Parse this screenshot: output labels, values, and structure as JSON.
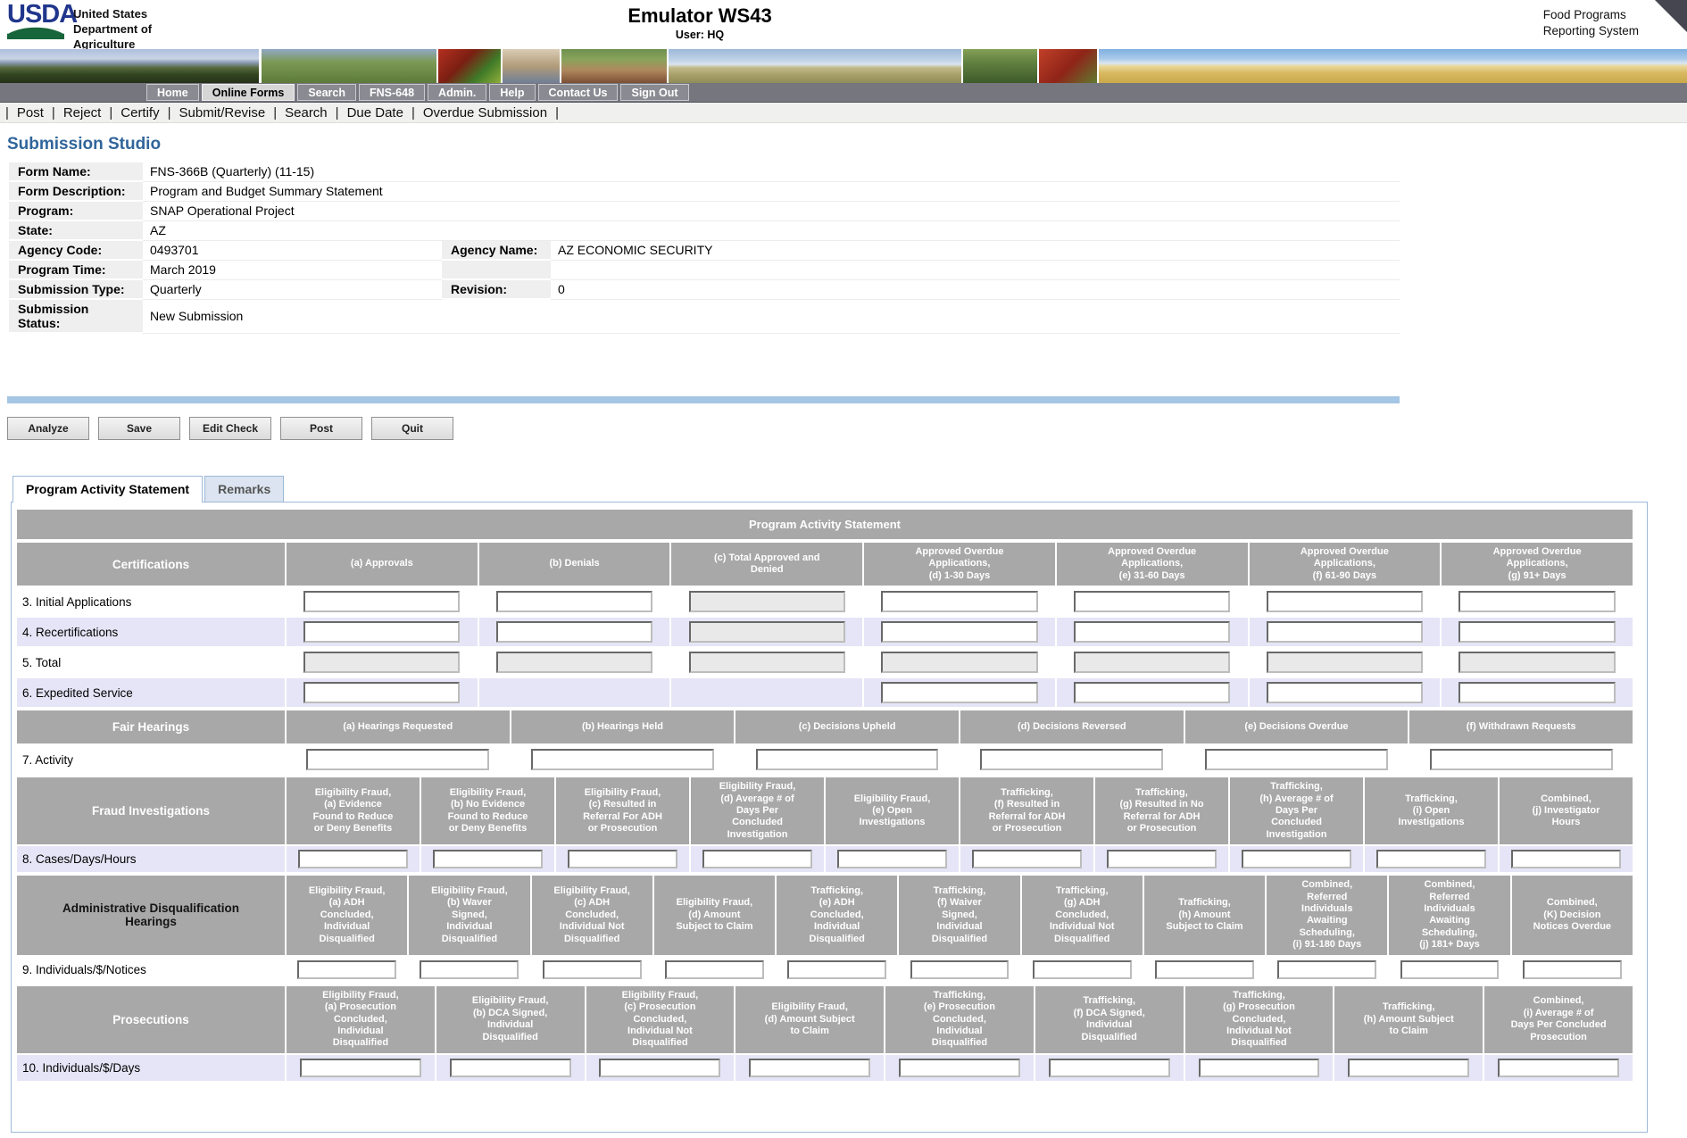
{
  "header": {
    "logo_text": "USDA",
    "dept_lines": [
      "United States",
      "Department of",
      "Agriculture"
    ],
    "app_title": "Emulator WS43",
    "user_line": "User: HQ",
    "system_lines": [
      "Food Programs",
      "Reporting System"
    ]
  },
  "nav": {
    "items": [
      {
        "label": "Home",
        "active": false
      },
      {
        "label": "Online Forms",
        "active": true
      },
      {
        "label": "Search",
        "active": false
      },
      {
        "label": "FNS-648",
        "active": false
      },
      {
        "label": "Admin.",
        "active": false
      },
      {
        "label": "Help",
        "active": false
      },
      {
        "label": "Contact Us",
        "active": false
      },
      {
        "label": "Sign Out",
        "active": false
      }
    ]
  },
  "toolbar": {
    "separator": "|",
    "items": [
      "Post",
      "Reject",
      "Certify",
      "Submit/Revise",
      "Search",
      "Due Date",
      "Overdue Submission"
    ]
  },
  "page": {
    "title": "Submission Studio"
  },
  "form_info": {
    "form_name": {
      "label": "Form Name:",
      "value": "FNS-366B (Quarterly) (11-15)"
    },
    "form_description": {
      "label": "Form Description:",
      "value": "Program and Budget Summary Statement"
    },
    "program": {
      "label": "Program:",
      "value": "SNAP Operational Project"
    },
    "state": {
      "label": "State:",
      "value": "AZ"
    },
    "agency_code": {
      "label": "Agency Code:",
      "value": "0493701"
    },
    "agency_name": {
      "label": "Agency Name:",
      "value": "AZ ECONOMIC SECURITY"
    },
    "program_time": {
      "label": "Program Time:",
      "value": "March 2019"
    },
    "submission_type": {
      "label": "Submission Type:",
      "value": "Quarterly"
    },
    "revision": {
      "label": "Revision:",
      "value": "0"
    },
    "submission_status": {
      "label": "Submission\nStatus:",
      "value": "New Submission"
    }
  },
  "actions": [
    "Analyze",
    "Save",
    "Edit Check",
    "Post",
    "Quit"
  ],
  "tabs": [
    {
      "label": "Program Activity Statement",
      "active": true
    },
    {
      "label": "Remarks",
      "active": false
    }
  ],
  "colors": {
    "page_title_blue": "#31659b",
    "divider_blue": "#a5c6e4",
    "table_header_gray": "#a8a8a8",
    "row_alt_lavender": "#e5e5f7",
    "tab_border_blue": "#9db9d9",
    "nav_bar_gray": "#76767f"
  },
  "program_table": {
    "title": "Program Activity Statement",
    "sections": [
      {
        "label": "Certifications",
        "dark_label": false,
        "columns": [
          "(a) Approvals",
          "(b) Denials",
          "(c) Total Approved and\nDenied",
          "Approved Overdue\nApplications,\n(d) 1-30 Days",
          "Approved Overdue\nApplications,\n(e) 31-60 Days",
          "Approved Overdue\nApplications,\n(f) 61-90 Days",
          "Approved Overdue\nApplications,\n(g) 91+ Days"
        ],
        "rows": [
          {
            "label": "3. Initial Applications",
            "alt": false,
            "cells": [
              "input",
              "input",
              "disabled",
              "input",
              "input",
              "input",
              "input"
            ]
          },
          {
            "label": "4. Recertifications",
            "alt": true,
            "cells": [
              "input",
              "input",
              "disabled",
              "input",
              "input",
              "input",
              "input"
            ]
          },
          {
            "label": "5. Total",
            "alt": false,
            "cells": [
              "disabled",
              "disabled",
              "disabled",
              "disabled",
              "disabled",
              "disabled",
              "disabled"
            ]
          },
          {
            "label": "6. Expedited Service",
            "alt": true,
            "cells": [
              "input",
              "empty",
              "empty",
              "input",
              "input",
              "input",
              "input"
            ]
          }
        ]
      },
      {
        "label": "Fair Hearings",
        "dark_label": false,
        "columns": [
          "(a) Hearings Requested",
          "(b) Hearings Held",
          "(c) Decisions Upheld",
          "(d) Decisions Reversed",
          "(e) Decisions Overdue",
          "(f) Withdrawn Requests"
        ],
        "rows": [
          {
            "label": "7. Activity",
            "alt": false,
            "cells": [
              "input",
              "input",
              "input",
              "input",
              "input",
              "input"
            ]
          }
        ]
      },
      {
        "label": "Fraud Investigations",
        "dark_label": false,
        "columns": [
          "Eligibility Fraud,\n(a) Evidence\nFound to Reduce\nor Deny Benefits",
          "Eligibility Fraud,\n(b) No Evidence\nFound to Reduce\nor Deny Benefits",
          "Eligibility Fraud,\n(c) Resulted in\nReferral For ADH\nor Prosecution",
          "Eligibility Fraud,\n(d) Average # of\nDays Per\nConcluded\nInvestigation",
          "Eligibility Fraud,\n(e) Open\nInvestigations",
          "Trafficking,\n(f) Resulted in\nReferral for ADH\nor Prosecution",
          "Trafficking,\n(g) Resulted in No\nReferral for ADH\nor Prosecution",
          "Trafficking,\n(h) Average # of\nDays Per\nConcluded\nInvestigation",
          "Trafficking,\n(i) Open\nInvestigations",
          "Combined,\n(j) Investigator\nHours"
        ],
        "rows": [
          {
            "label": "8. Cases/Days/Hours",
            "alt": true,
            "cells": [
              "input",
              "input",
              "input",
              "input",
              "input",
              "input",
              "input",
              "input",
              "input",
              "input"
            ]
          }
        ]
      },
      {
        "label": "Administrative Disqualification\nHearings",
        "dark_label": true,
        "columns": [
          "Eligibility Fraud,\n(a) ADH\nConcluded,\nIndividual\nDisqualified",
          "Eligibility Fraud,\n(b) Waver\nSigned,\nIndividual\nDisqualified",
          "Eligibility Fraud,\n(c) ADH\nConcluded,\nIndividual Not\nDisqualified",
          "Eligibility Fraud,\n(d) Amount\nSubject to Claim",
          "Trafficking,\n(e) ADH\nConcluded,\nIndividual\nDisqualified",
          "Trafficking,\n(f) Waiver\nSigned,\nIndividual\nDisqualified",
          "Trafficking,\n(g) ADH\nConcluded,\nIndividual Not\nDisqualified",
          "Trafficking,\n(h) Amount\nSubject to Claim",
          "Combined,\nReferred\nIndividuals\nAwaiting\nScheduling,\n(i) 91-180 Days",
          "Combined,\nReferred\nIndividuals\nAwaiting\nScheduling,\n(j) 181+ Days",
          "Combined,\n(K) Decision\nNotices Overdue"
        ],
        "rows": [
          {
            "label": "9. Individuals/$/Notices",
            "alt": false,
            "cells": [
              "input",
              "input",
              "input",
              "input",
              "input",
              "input",
              "input",
              "input",
              "input",
              "input",
              "input"
            ]
          }
        ]
      },
      {
        "label": "Prosecutions",
        "dark_label": false,
        "columns": [
          "Eligibility Fraud,\n(a) Prosecution\nConcluded,\nIndividual\nDisqualified",
          "Eligibility Fraud,\n(b) DCA Signed,\nIndividual\nDisqualified",
          "Eligibility Fraud,\n(c) Prosecution\nConcluded,\nIndividual Not\nDisqualified",
          "Eligibility Fraud,\n(d) Amount Subject\nto Claim",
          "Trafficking,\n(e) Prosecution\nConcluded,\nIndividual\nDisqualified",
          "Trafficking,\n(f) DCA Signed,\nIndividual\nDisqualified",
          "Trafficking,\n(g) Prosecution\nConcluded,\nIndividual Not\nDisqualified",
          "Trafficking,\n(h) Amount Subject\nto Claim",
          "Combined,\n(i) Average # of\nDays Per Concluded\nProsecution"
        ],
        "rows": [
          {
            "label": "10. Individuals/$/Days",
            "alt": true,
            "cells": [
              "input",
              "input",
              "input",
              "input",
              "input",
              "input",
              "input",
              "input",
              "input"
            ]
          }
        ]
      }
    ]
  }
}
